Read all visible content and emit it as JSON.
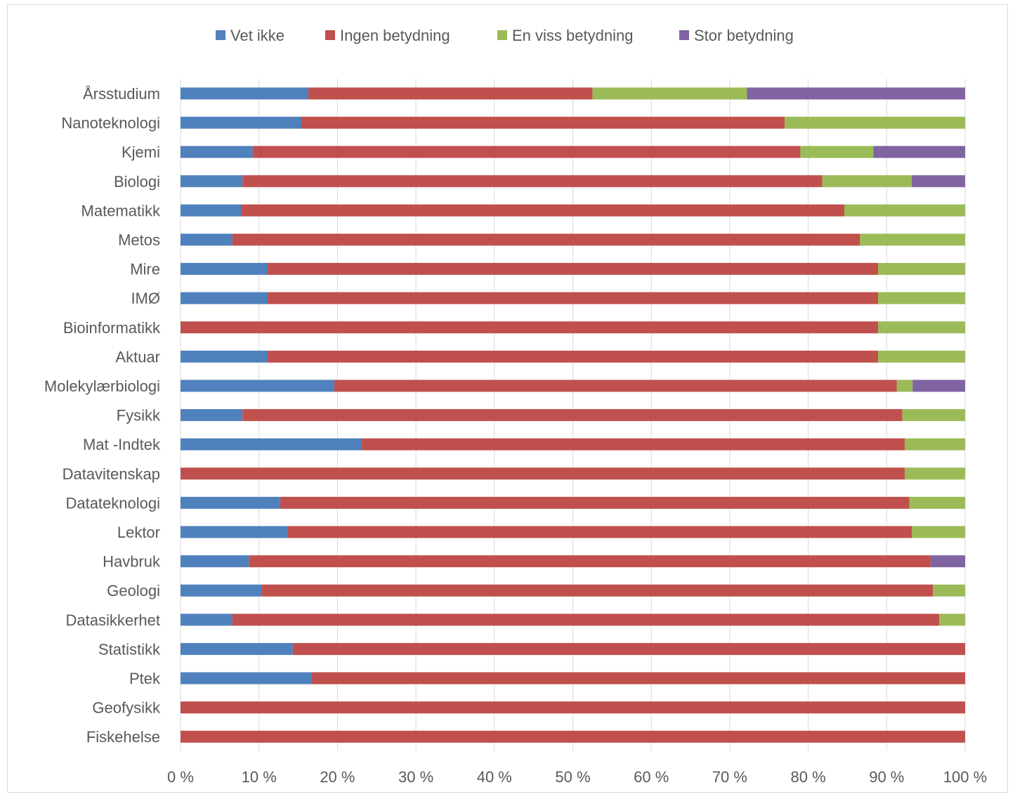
{
  "chart_data": {
    "type": "bar",
    "orientation": "horizontal",
    "stacked": "percent",
    "categories": [
      "Årsstudium",
      "Nanoteknologi",
      "Kjemi",
      "Biologi",
      "Matematikk",
      "Metos",
      "Mire",
      "IMØ",
      "Bioinformatikk",
      "Aktuar",
      "Molekylærbiologi",
      "Fysikk",
      "Mat -Indtek",
      "Datavitenskap",
      "Datateknologi",
      "Lektor",
      "Havbruk",
      "Geologi",
      "Datasikkerhet",
      "Statistikk",
      "Ptek",
      "Geofysikk",
      "Fiskehelse"
    ],
    "series": [
      {
        "name": "Vet ikke",
        "color": "#4f81bd",
        "values": [
          16.3,
          15.4,
          9.2,
          7.9,
          7.7,
          6.6,
          11.1,
          11.1,
          0,
          11.1,
          19.6,
          7.9,
          23.1,
          0,
          12.7,
          13.6,
          8.7,
          10.3,
          6.6,
          14.3,
          16.7,
          0,
          0
        ]
      },
      {
        "name": "Ingen betydning",
        "color": "#c0504d",
        "values": [
          36.2,
          61.6,
          69.8,
          73.9,
          76.9,
          80.0,
          77.8,
          77.8,
          88.9,
          77.8,
          71.7,
          84.1,
          69.2,
          92.3,
          80.2,
          79.6,
          86.9,
          85.6,
          90.1,
          85.7,
          83.3,
          100,
          100
        ]
      },
      {
        "name": "En viss betydning",
        "color": "#9bbb59",
        "values": [
          19.7,
          23.0,
          9.3,
          11.4,
          15.4,
          13.4,
          11.1,
          11.1,
          11.1,
          11.1,
          2.0,
          8.0,
          7.7,
          7.7,
          7.1,
          6.8,
          0,
          4.1,
          3.3,
          0,
          0,
          0,
          0
        ]
      },
      {
        "name": "Stor betydning",
        "color": "#8064a2",
        "values": [
          27.8,
          0,
          11.7,
          6.8,
          0,
          0,
          0,
          0,
          0,
          0,
          6.7,
          0,
          0,
          0,
          0,
          0,
          4.4,
          0,
          0,
          0,
          0,
          0,
          0
        ]
      }
    ],
    "xlim": [
      0,
      100
    ],
    "xticks": [
      "0 %",
      "10 %",
      "20 %",
      "30 %",
      "40 %",
      "50 %",
      "60 %",
      "70 %",
      "80 %",
      "90 %",
      "100 %"
    ],
    "grid": true,
    "legend": "top"
  }
}
